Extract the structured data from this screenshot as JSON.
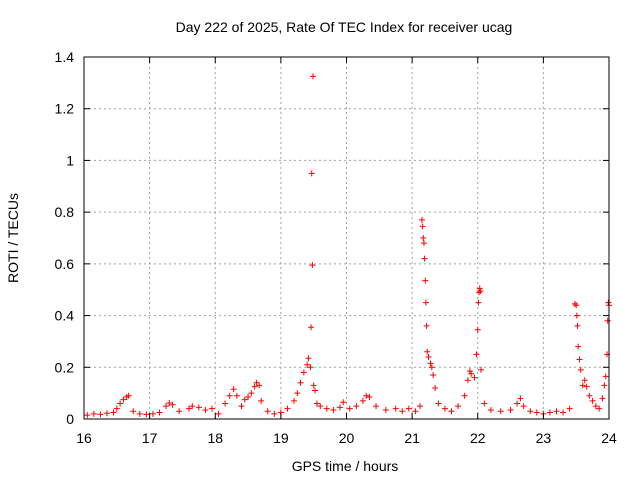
{
  "chart_data": {
    "type": "scatter",
    "title": "Day 222 of 2025, Rate Of TEC Index for receiver ucag",
    "xlabel": "GPS time / hours",
    "ylabel": "ROTI / TECUs",
    "xlim": [
      16,
      24
    ],
    "ylim": [
      0,
      1.4
    ],
    "xticks": [
      16,
      17,
      18,
      19,
      20,
      21,
      22,
      23,
      24
    ],
    "yticks": [
      0,
      0.2,
      0.4,
      0.6,
      0.8,
      1,
      1.2,
      1.4
    ],
    "xtick_labels": [
      "16",
      "17",
      "18",
      "19",
      "20",
      "21",
      "22",
      "23",
      "24"
    ],
    "ytick_labels": [
      "0",
      "0.2",
      "0.4",
      "0.6",
      "0.8",
      "1",
      "1.2",
      "1.4"
    ],
    "grid": true,
    "marker": "plus",
    "color": "#ff0000",
    "series": [
      {
        "points": [
          [
            16.05,
            0.015
          ],
          [
            16.15,
            0.02
          ],
          [
            16.25,
            0.018
          ],
          [
            16.35,
            0.022
          ],
          [
            16.45,
            0.025
          ],
          [
            16.5,
            0.04
          ],
          [
            16.55,
            0.06
          ],
          [
            16.6,
            0.075
          ],
          [
            16.65,
            0.085
          ],
          [
            16.68,
            0.09
          ],
          [
            16.75,
            0.03
          ],
          [
            16.85,
            0.02
          ],
          [
            16.95,
            0.018
          ],
          [
            17.05,
            0.02
          ],
          [
            17.15,
            0.025
          ],
          [
            17.25,
            0.05
          ],
          [
            17.3,
            0.062
          ],
          [
            17.35,
            0.055
          ],
          [
            17.45,
            0.03
          ],
          [
            17.6,
            0.04
          ],
          [
            17.65,
            0.05
          ],
          [
            17.75,
            0.045
          ],
          [
            17.85,
            0.035
          ],
          [
            17.95,
            0.04
          ],
          [
            18.05,
            0.02
          ],
          [
            18.15,
            0.06
          ],
          [
            18.22,
            0.09
          ],
          [
            18.28,
            0.115
          ],
          [
            18.33,
            0.09
          ],
          [
            18.4,
            0.05
          ],
          [
            18.45,
            0.075
          ],
          [
            18.5,
            0.085
          ],
          [
            18.55,
            0.1
          ],
          [
            18.6,
            0.125
          ],
          [
            18.63,
            0.14
          ],
          [
            18.67,
            0.13
          ],
          [
            18.7,
            0.07
          ],
          [
            18.8,
            0.03
          ],
          [
            18.9,
            0.02
          ],
          [
            19.0,
            0.025
          ],
          [
            19.1,
            0.04
          ],
          [
            19.2,
            0.07
          ],
          [
            19.25,
            0.1
          ],
          [
            19.3,
            0.14
          ],
          [
            19.35,
            0.18
          ],
          [
            19.4,
            0.21
          ],
          [
            19.42,
            0.235
          ],
          [
            19.45,
            0.2
          ],
          [
            19.46,
            0.355
          ],
          [
            19.48,
            0.595
          ],
          [
            19.47,
            0.95
          ],
          [
            19.49,
            1.325
          ],
          [
            19.5,
            0.13
          ],
          [
            19.52,
            0.11
          ],
          [
            19.55,
            0.06
          ],
          [
            19.6,
            0.05
          ],
          [
            19.7,
            0.04
          ],
          [
            19.8,
            0.035
          ],
          [
            19.9,
            0.045
          ],
          [
            19.95,
            0.065
          ],
          [
            20.05,
            0.04
          ],
          [
            20.15,
            0.05
          ],
          [
            20.25,
            0.07
          ],
          [
            20.3,
            0.09
          ],
          [
            20.35,
            0.085
          ],
          [
            20.45,
            0.05
          ],
          [
            20.6,
            0.035
          ],
          [
            20.75,
            0.04
          ],
          [
            20.85,
            0.03
          ],
          [
            20.95,
            0.04
          ],
          [
            21.05,
            0.03
          ],
          [
            21.12,
            0.05
          ],
          [
            21.15,
            0.77
          ],
          [
            21.16,
            0.745
          ],
          [
            21.17,
            0.7
          ],
          [
            21.18,
            0.68
          ],
          [
            21.19,
            0.62
          ],
          [
            21.2,
            0.535
          ],
          [
            21.21,
            0.45
          ],
          [
            21.22,
            0.36
          ],
          [
            21.23,
            0.26
          ],
          [
            21.25,
            0.24
          ],
          [
            21.28,
            0.215
          ],
          [
            21.3,
            0.2
          ],
          [
            21.32,
            0.17
          ],
          [
            21.35,
            0.12
          ],
          [
            21.4,
            0.06
          ],
          [
            21.5,
            0.04
          ],
          [
            21.6,
            0.03
          ],
          [
            21.7,
            0.05
          ],
          [
            21.8,
            0.09
          ],
          [
            21.85,
            0.15
          ],
          [
            21.88,
            0.185
          ],
          [
            21.9,
            0.175
          ],
          [
            21.95,
            0.16
          ],
          [
            21.98,
            0.25
          ],
          [
            22.0,
            0.345
          ],
          [
            22.01,
            0.45
          ],
          [
            22.02,
            0.49
          ],
          [
            22.03,
            0.505
          ],
          [
            22.04,
            0.495
          ],
          [
            22.05,
            0.19
          ],
          [
            22.1,
            0.06
          ],
          [
            22.2,
            0.035
          ],
          [
            22.35,
            0.03
          ],
          [
            22.5,
            0.035
          ],
          [
            22.6,
            0.06
          ],
          [
            22.65,
            0.08
          ],
          [
            22.7,
            0.05
          ],
          [
            22.8,
            0.03
          ],
          [
            22.9,
            0.025
          ],
          [
            23.0,
            0.02
          ],
          [
            23.1,
            0.025
          ],
          [
            23.2,
            0.03
          ],
          [
            23.3,
            0.025
          ],
          [
            23.4,
            0.04
          ],
          [
            23.48,
            0.445
          ],
          [
            23.5,
            0.44
          ],
          [
            23.51,
            0.4
          ],
          [
            23.52,
            0.36
          ],
          [
            23.53,
            0.28
          ],
          [
            23.55,
            0.23
          ],
          [
            23.57,
            0.19
          ],
          [
            23.6,
            0.13
          ],
          [
            23.63,
            0.15
          ],
          [
            23.66,
            0.125
          ],
          [
            23.7,
            0.09
          ],
          [
            23.75,
            0.07
          ],
          [
            23.8,
            0.05
          ],
          [
            23.85,
            0.04
          ],
          [
            23.9,
            0.08
          ],
          [
            23.93,
            0.13
          ],
          [
            23.95,
            0.165
          ],
          [
            23.97,
            0.25
          ],
          [
            23.98,
            0.38
          ],
          [
            23.99,
            0.45
          ],
          [
            24.0,
            0.44
          ]
        ]
      }
    ]
  }
}
